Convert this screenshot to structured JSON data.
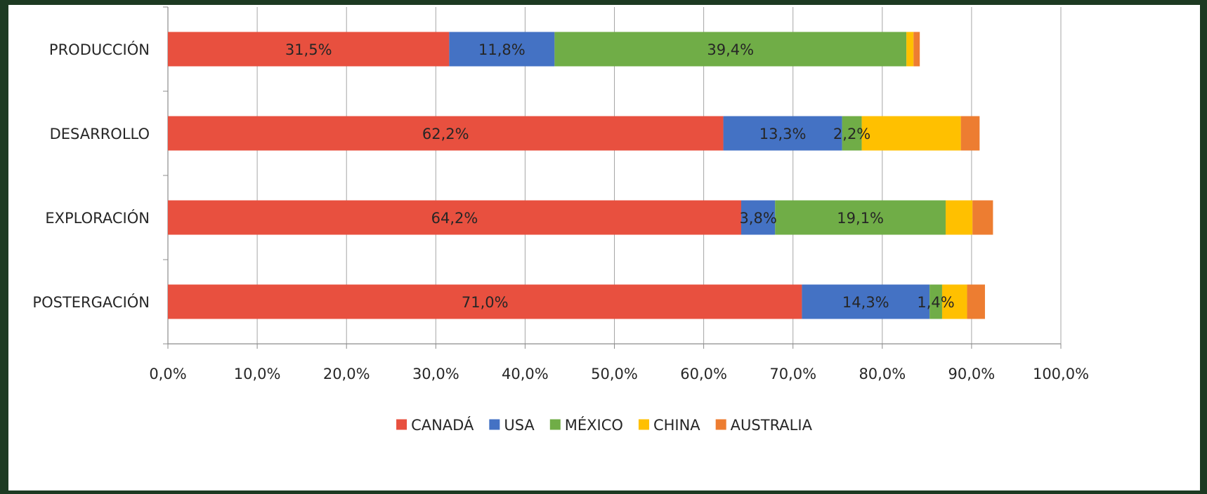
{
  "chart_data": {
    "type": "bar",
    "orientation": "horizontal",
    "stacked": true,
    "categories": [
      "PRODUCCIÓN",
      "DESARROLLO",
      "EXPLORACIÓN",
      "POSTERGACIÓN"
    ],
    "series": [
      {
        "name": "CANADÁ",
        "color": "#e8503f",
        "values": [
          31.5,
          62.2,
          64.2,
          71.0
        ],
        "labels": [
          "31,5%",
          "62,2%",
          "64,2%",
          "71,0%"
        ]
      },
      {
        "name": "USA",
        "color": "#4472c4",
        "values": [
          11.8,
          13.3,
          3.8,
          14.3
        ],
        "labels": [
          "11,8%",
          "13,3%",
          "3,8%",
          "14,3%"
        ]
      },
      {
        "name": "MÉXICO",
        "color": "#70ad47",
        "values": [
          39.4,
          2.2,
          19.1,
          1.4
        ],
        "labels": [
          "39,4%",
          "2,2%",
          "19,1%",
          "1,4%"
        ]
      },
      {
        "name": "CHINA",
        "color": "#ffc000",
        "values": [
          0.8,
          11.1,
          3.0,
          2.8
        ],
        "labels": [
          "",
          "",
          "",
          ""
        ]
      },
      {
        "name": "AUSTRALIA",
        "color": "#ed7d31",
        "values": [
          0.7,
          2.1,
          2.3,
          2.0
        ],
        "labels": [
          "",
          "",
          "",
          ""
        ]
      }
    ],
    "xaxis": {
      "ticks": [
        0,
        10,
        20,
        30,
        40,
        50,
        60,
        70,
        80,
        90,
        100
      ],
      "tick_labels": [
        "0,0%",
        "10,0%",
        "20,0%",
        "30,0%",
        "40,0%",
        "50,0%",
        "60,0%",
        "70,0%",
        "80,0%",
        "90,0%",
        "100,0%"
      ]
    },
    "xlim": [
      0,
      100
    ],
    "grid": "vertical",
    "legend": "bottom"
  }
}
